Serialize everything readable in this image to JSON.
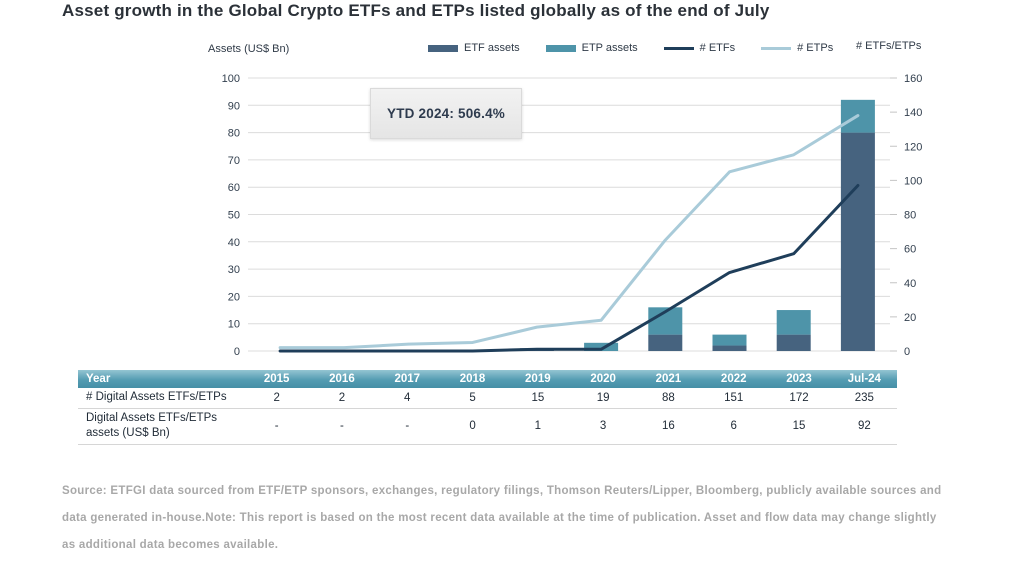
{
  "title": "Asset growth in the Global Crypto ETFs and ETPs listed globally as of the end of July",
  "chart_data": {
    "type": "combo",
    "categories": [
      "2015",
      "2016",
      "2017",
      "2018",
      "2019",
      "2020",
      "2021",
      "2022",
      "2023",
      "Jul-24"
    ],
    "bar_series": [
      {
        "name": "ETF assets",
        "axis": "left",
        "stacked": true,
        "color": "#46637F",
        "values": [
          0,
          0,
          0,
          0,
          1,
          0,
          6,
          2,
          6,
          80
        ]
      },
      {
        "name": "ETP assets",
        "axis": "left",
        "stacked": true,
        "color": "#4E94A9",
        "values": [
          0,
          0,
          0,
          0,
          0,
          3,
          10,
          4,
          9,
          12
        ]
      }
    ],
    "line_series": [
      {
        "name": "# ETFs",
        "axis": "right",
        "color": "#1F3E5A",
        "values": [
          0,
          0,
          0,
          0,
          1,
          1,
          23,
          46,
          57,
          97
        ]
      },
      {
        "name": "# ETPs",
        "axis": "right",
        "color": "#A9CBD9",
        "values": [
          2,
          2,
          4,
          5,
          14,
          18,
          65,
          105,
          115,
          138
        ]
      }
    ],
    "left_axis": {
      "label": "Assets (US$ Bn)",
      "min": 0,
      "max": 100,
      "step": 10
    },
    "right_axis": {
      "label": "# ETFs/ETPs",
      "min": 0,
      "max": 160,
      "step": 20
    },
    "annotation": "YTD 2024: 506.4%",
    "legend_position": "top",
    "grid": "horizontal"
  },
  "table": {
    "header": [
      "Year",
      "2015",
      "2016",
      "2017",
      "2018",
      "2019",
      "2020",
      "2021",
      "2022",
      "2023",
      "Jul-24"
    ],
    "rows": [
      {
        "label": "# Digital Assets ETFs/ETPs",
        "values": [
          "2",
          "2",
          "4",
          "5",
          "15",
          "19",
          "88",
          "151",
          "172",
          "235"
        ]
      },
      {
        "label": "Digital Assets ETFs/ETPs assets (US$ Bn)",
        "values": [
          "-",
          "-",
          "-",
          "0",
          "1",
          "3",
          "16",
          "6",
          "15",
          "92"
        ]
      }
    ]
  },
  "source_note": "Source: ETFGI data sourced from ETF/ETP sponsors, exchanges, regulatory filings, Thomson Reuters/Lipper, Bloomberg, publicly available sources and data generated in-house.Note: This report is based on the most recent data available at the time of publication. Asset and flow data may change slightly as additional data becomes available.",
  "colors": {
    "grid": "#dcdcdc",
    "axis_text": "#33404f",
    "tick": "#c4c4c4",
    "table_header_top": "#94c5d2",
    "table_header_bottom": "#458fa6",
    "title_text": "#2b3138",
    "source_text": "#a8a8a8",
    "annotation_bg": "#ececec"
  }
}
